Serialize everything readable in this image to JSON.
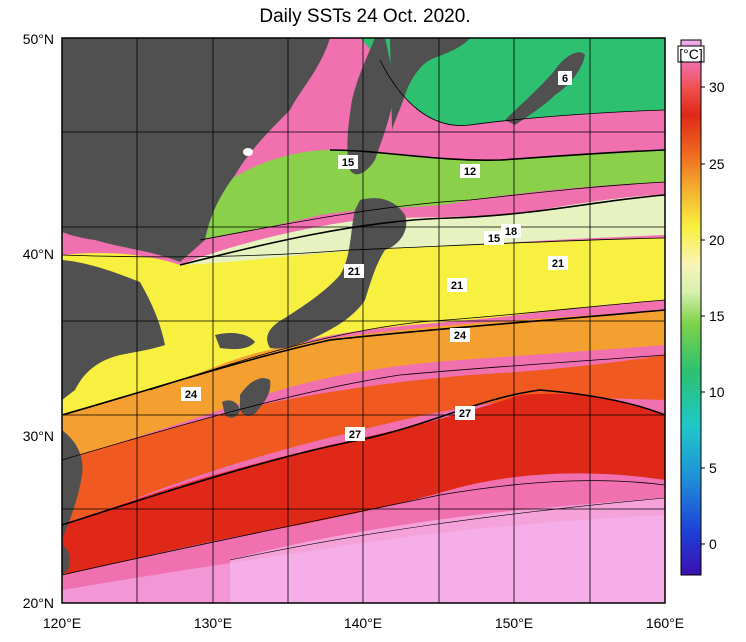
{
  "title": "Daily SSTs 24 Oct. 2020.",
  "map": {
    "lat_labels": [
      "50°N",
      "40°N",
      "30°N",
      "20°N"
    ],
    "lon_labels": [
      "120°E",
      "130°E",
      "140°E",
      "150°E",
      "160°E"
    ],
    "lat_range": [
      20,
      50
    ],
    "lon_range": [
      120,
      160
    ],
    "grid_step_deg": 5
  },
  "colorbar": {
    "unit": "[°C]",
    "ticks": [
      "30",
      "25",
      "20",
      "15",
      "10",
      "5",
      "0"
    ],
    "range": [
      -2,
      32
    ],
    "colors": [
      "#3a10b0",
      "#1f3fd8",
      "#1f8fd8",
      "#20c8c8",
      "#2cc070",
      "#7ed24a",
      "#d8f0b0",
      "#f8f4b8",
      "#f8f040",
      "#f4b030",
      "#f07020",
      "#e02818",
      "#f05050",
      "#f070b0",
      "#f0b0f0"
    ]
  },
  "contour_labels": [
    "6",
    "12",
    "15",
    "18",
    "15",
    "21",
    "21",
    "21",
    "24",
    "24",
    "27",
    "27"
  ],
  "colors": {
    "land": "#505050",
    "frame": "#000000"
  }
}
